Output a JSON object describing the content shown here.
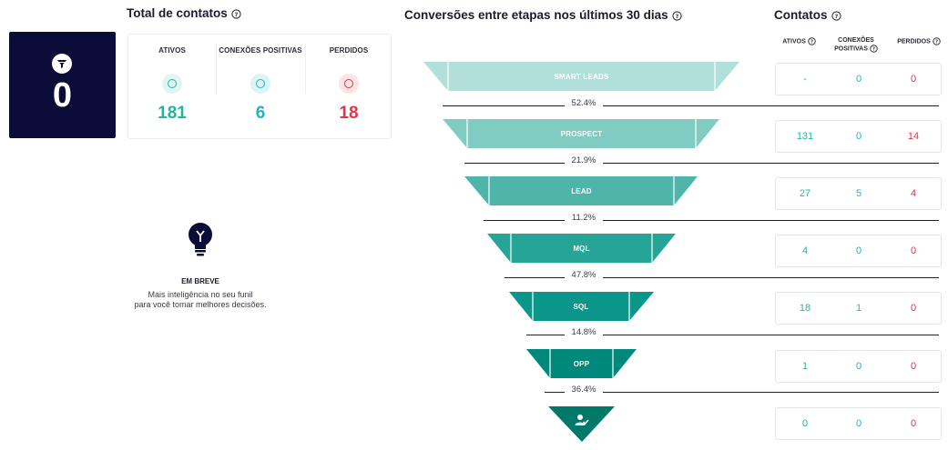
{
  "hero": {
    "value": "0"
  },
  "totals": {
    "title": "Total de contatos",
    "columns": [
      {
        "label": "ATIVOS",
        "value": "181",
        "color": "#1bb89f",
        "dot_bg": "#dff6f1"
      },
      {
        "label": "CONEXÕES POSITIVAS",
        "value": "6",
        "color": "#22b3c9",
        "dot_bg": "#ddf3f7"
      },
      {
        "label": "PERDIDOS",
        "value": "18",
        "color": "#e0344b",
        "dot_bg": "#fbe3e6"
      }
    ]
  },
  "soon": {
    "title": "EM BREVE",
    "line1": "Mais inteligência no seu funil",
    "line2": "para você tomar melhores decisões."
  },
  "funnel": {
    "title": "Conversões entre etapas nos últimos 30 dias",
    "stages": [
      {
        "label": "SMART LEADS",
        "color": "#b1e0da"
      },
      {
        "label": "PROSPECT",
        "color": "#80cbc2"
      },
      {
        "label": "LEAD",
        "color": "#4fb5ab"
      },
      {
        "label": "MQL",
        "color": "#26a497"
      },
      {
        "label": "SQL",
        "color": "#0a978a"
      },
      {
        "label": "OPP",
        "color": "#00897b"
      },
      {
        "label": "",
        "color": "#00796b"
      }
    ],
    "conversions": [
      "52.4%",
      "21.9%",
      "11.2%",
      "47.8%",
      "14.8%",
      "36.4%"
    ]
  },
  "contacts": {
    "title": "Contatos",
    "headers": {
      "active": "ATIVOS",
      "positive_1": "CONEXÕES",
      "positive_2": "POSITIVAS",
      "lost": "PERDIDOS"
    },
    "rows": [
      {
        "active": "-",
        "positive": "0",
        "lost": "0"
      },
      {
        "active": "131",
        "positive": "0",
        "lost": "14"
      },
      {
        "active": "27",
        "positive": "5",
        "lost": "4"
      },
      {
        "active": "4",
        "positive": "0",
        "lost": "0"
      },
      {
        "active": "18",
        "positive": "1",
        "lost": "0"
      },
      {
        "active": "1",
        "positive": "0",
        "lost": "0"
      },
      {
        "active": "0",
        "positive": "0",
        "lost": "0"
      }
    ]
  }
}
